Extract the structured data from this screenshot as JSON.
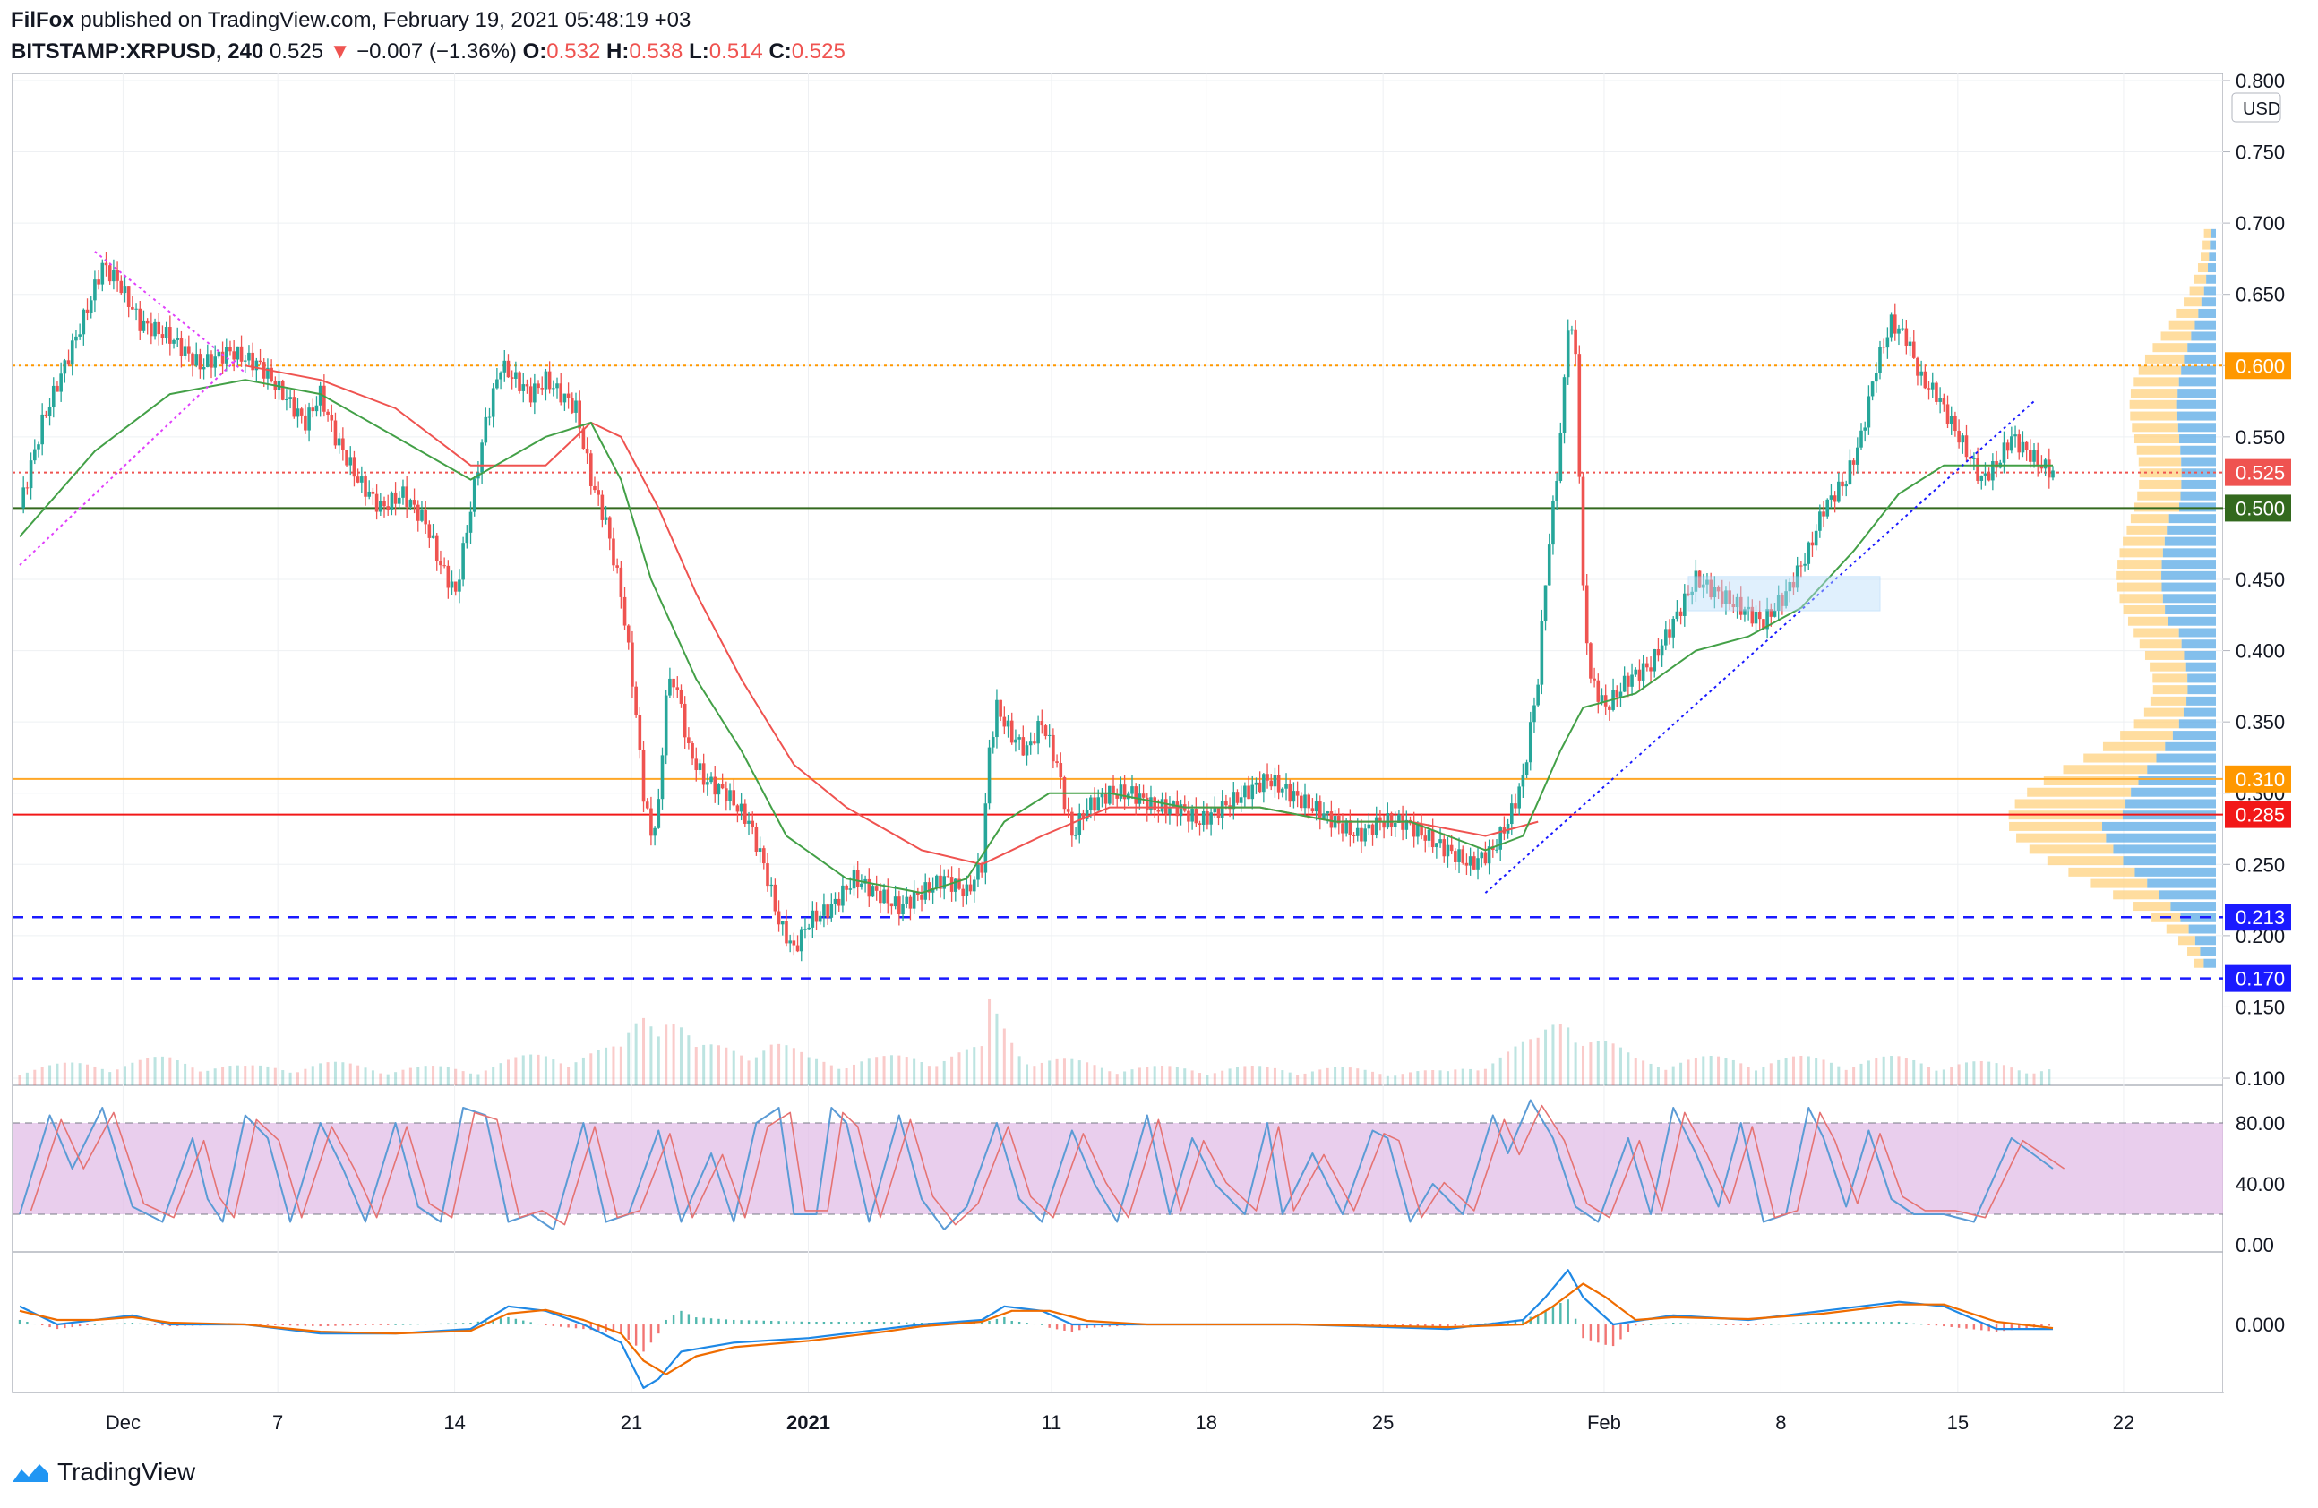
{
  "header": {
    "author": "FilFox",
    "published_text": "published on TradingView.com, February 19, 2021 05:48:19 +03",
    "symbol": "BITSTAMP:XRPUSD, 240",
    "last": "0.525",
    "change": "−0.007 (−1.36%)",
    "o_label": "O:",
    "o": "0.532",
    "h_label": "H:",
    "h": "0.538",
    "l_label": "L:",
    "l": "0.514",
    "c_label": "C:",
    "c": "0.525"
  },
  "footer": {
    "brand": "TradingView"
  },
  "colors": {
    "up": "#26a69a",
    "down": "#ef5350",
    "ma_short": "#43a047",
    "ma_long": "#ef5350",
    "stoch_k": "#5b9bd5",
    "stoch_d": "#e57373",
    "stoch_band": "#e1bee7",
    "macd": "#1e88e5",
    "signal": "#ef6c00"
  },
  "chart_data": {
    "type": "candlestick",
    "currency": "USD",
    "x_labels": [
      "Dec",
      "7",
      "14",
      "21",
      "2021",
      "11",
      "18",
      "25",
      "Feb",
      "8",
      "15",
      "22"
    ],
    "y_ticks": [
      "0.800",
      "0.750",
      "0.700",
      "0.650",
      "0.600",
      "0.550",
      "0.500",
      "0.450",
      "0.400",
      "0.350",
      "0.300",
      "0.250",
      "0.200",
      "0.150",
      "0.100"
    ],
    "ylim": [
      0.095,
      0.805
    ],
    "price_labels": [
      {
        "value": 0.6,
        "text": "0.600",
        "color": "#ff9800"
      },
      {
        "value": 0.525,
        "text": "0.525",
        "color": "#ef5350"
      },
      {
        "value": 0.5,
        "text": "0.500",
        "color": "#33691e"
      },
      {
        "value": 0.31,
        "text": "0.310",
        "color": "#ff9800"
      },
      {
        "value": 0.285,
        "text": "0.285",
        "color": "#f21818"
      },
      {
        "value": 0.213,
        "text": "0.213",
        "color": "#1a1aff"
      },
      {
        "value": 0.17,
        "text": "0.170",
        "color": "#1a1aff"
      }
    ],
    "horizontal_lines": [
      {
        "value": 0.6,
        "style": "dotted",
        "color": "#ff9800"
      },
      {
        "value": 0.525,
        "style": "dotted",
        "color": "#ef5350"
      },
      {
        "value": 0.5,
        "style": "solid",
        "color": "#33691e"
      },
      {
        "value": 0.31,
        "style": "solid",
        "color": "#ffa726"
      },
      {
        "value": 0.285,
        "style": "solid",
        "color": "#f21818"
      },
      {
        "value": 0.213,
        "style": "dashed",
        "color": "#1a1aff"
      },
      {
        "value": 0.17,
        "style": "dashed",
        "color": "#1a1aff"
      }
    ],
    "price_path": [
      [
        0,
        0.5
      ],
      [
        6,
        0.56
      ],
      [
        12,
        0.6
      ],
      [
        18,
        0.64
      ],
      [
        22,
        0.67
      ],
      [
        26,
        0.66
      ],
      [
        32,
        0.63
      ],
      [
        40,
        0.62
      ],
      [
        48,
        0.6
      ],
      [
        56,
        0.61
      ],
      [
        64,
        0.6
      ],
      [
        70,
        0.58
      ],
      [
        76,
        0.56
      ],
      [
        80,
        0.58
      ],
      [
        84,
        0.55
      ],
      [
        90,
        0.52
      ],
      [
        96,
        0.5
      ],
      [
        102,
        0.51
      ],
      [
        108,
        0.49
      ],
      [
        112,
        0.46
      ],
      [
        116,
        0.44
      ],
      [
        120,
        0.5
      ],
      [
        124,
        0.56
      ],
      [
        128,
        0.6
      ],
      [
        132,
        0.59
      ],
      [
        136,
        0.58
      ],
      [
        140,
        0.59
      ],
      [
        144,
        0.58
      ],
      [
        148,
        0.57
      ],
      [
        152,
        0.52
      ],
      [
        156,
        0.49
      ],
      [
        160,
        0.44
      ],
      [
        163,
        0.38
      ],
      [
        166,
        0.3
      ],
      [
        168,
        0.27
      ],
      [
        170,
        0.29
      ],
      [
        172,
        0.37
      ],
      [
        174,
        0.38
      ],
      [
        176,
        0.36
      ],
      [
        178,
        0.33
      ],
      [
        182,
        0.31
      ],
      [
        188,
        0.3
      ],
      [
        194,
        0.28
      ],
      [
        198,
        0.25
      ],
      [
        202,
        0.21
      ],
      [
        206,
        0.19
      ],
      [
        210,
        0.21
      ],
      [
        216,
        0.22
      ],
      [
        222,
        0.24
      ],
      [
        228,
        0.23
      ],
      [
        234,
        0.22
      ],
      [
        240,
        0.23
      ],
      [
        246,
        0.24
      ],
      [
        252,
        0.23
      ],
      [
        256,
        0.25
      ],
      [
        258,
        0.33
      ],
      [
        260,
        0.36
      ],
      [
        264,
        0.34
      ],
      [
        268,
        0.33
      ],
      [
        272,
        0.35
      ],
      [
        276,
        0.32
      ],
      [
        280,
        0.27
      ],
      [
        284,
        0.29
      ],
      [
        290,
        0.3
      ],
      [
        296,
        0.3
      ],
      [
        302,
        0.29
      ],
      [
        308,
        0.29
      ],
      [
        314,
        0.28
      ],
      [
        320,
        0.29
      ],
      [
        326,
        0.3
      ],
      [
        332,
        0.31
      ],
      [
        338,
        0.3
      ],
      [
        344,
        0.29
      ],
      [
        350,
        0.28
      ],
      [
        356,
        0.27
      ],
      [
        362,
        0.28
      ],
      [
        368,
        0.28
      ],
      [
        374,
        0.27
      ],
      [
        380,
        0.26
      ],
      [
        386,
        0.25
      ],
      [
        392,
        0.26
      ],
      [
        396,
        0.28
      ],
      [
        400,
        0.31
      ],
      [
        404,
        0.38
      ],
      [
        406,
        0.45
      ],
      [
        408,
        0.5
      ],
      [
        410,
        0.55
      ],
      [
        412,
        0.63
      ],
      [
        414,
        0.61
      ],
      [
        416,
        0.44
      ],
      [
        418,
        0.38
      ],
      [
        422,
        0.36
      ],
      [
        428,
        0.38
      ],
      [
        434,
        0.39
      ],
      [
        438,
        0.41
      ],
      [
        442,
        0.43
      ],
      [
        446,
        0.45
      ],
      [
        452,
        0.44
      ],
      [
        458,
        0.43
      ],
      [
        464,
        0.42
      ],
      [
        470,
        0.44
      ],
      [
        476,
        0.47
      ],
      [
        480,
        0.5
      ],
      [
        486,
        0.52
      ],
      [
        490,
        0.55
      ],
      [
        494,
        0.6
      ],
      [
        498,
        0.63
      ],
      [
        502,
        0.62
      ],
      [
        506,
        0.59
      ],
      [
        510,
        0.58
      ],
      [
        514,
        0.56
      ],
      [
        518,
        0.54
      ],
      [
        522,
        0.52
      ],
      [
        526,
        0.53
      ],
      [
        530,
        0.55
      ],
      [
        534,
        0.54
      ],
      [
        538,
        0.53
      ],
      [
        541,
        0.525
      ]
    ],
    "ma_short_path": [
      [
        0,
        0.48
      ],
      [
        20,
        0.54
      ],
      [
        40,
        0.58
      ],
      [
        60,
        0.59
      ],
      [
        80,
        0.58
      ],
      [
        100,
        0.55
      ],
      [
        120,
        0.52
      ],
      [
        140,
        0.55
      ],
      [
        152,
        0.56
      ],
      [
        160,
        0.52
      ],
      [
        168,
        0.45
      ],
      [
        180,
        0.38
      ],
      [
        192,
        0.33
      ],
      [
        204,
        0.27
      ],
      [
        220,
        0.24
      ],
      [
        240,
        0.23
      ],
      [
        252,
        0.24
      ],
      [
        262,
        0.28
      ],
      [
        274,
        0.3
      ],
      [
        290,
        0.3
      ],
      [
        310,
        0.29
      ],
      [
        330,
        0.29
      ],
      [
        350,
        0.28
      ],
      [
        370,
        0.28
      ],
      [
        390,
        0.26
      ],
      [
        400,
        0.27
      ],
      [
        410,
        0.33
      ],
      [
        416,
        0.36
      ],
      [
        430,
        0.37
      ],
      [
        446,
        0.4
      ],
      [
        460,
        0.41
      ],
      [
        474,
        0.43
      ],
      [
        488,
        0.47
      ],
      [
        500,
        0.51
      ],
      [
        512,
        0.53
      ],
      [
        526,
        0.53
      ],
      [
        541,
        0.53
      ]
    ],
    "ma_long_path": [
      [
        60,
        0.6
      ],
      [
        80,
        0.59
      ],
      [
        100,
        0.57
      ],
      [
        120,
        0.53
      ],
      [
        140,
        0.53
      ],
      [
        152,
        0.56
      ],
      [
        160,
        0.55
      ],
      [
        170,
        0.5
      ],
      [
        180,
        0.44
      ],
      [
        192,
        0.38
      ],
      [
        206,
        0.32
      ],
      [
        220,
        0.29
      ],
      [
        240,
        0.26
      ],
      [
        256,
        0.25
      ],
      [
        272,
        0.27
      ],
      [
        290,
        0.29
      ],
      [
        310,
        0.29
      ],
      [
        330,
        0.29
      ],
      [
        350,
        0.28
      ],
      [
        370,
        0.28
      ],
      [
        390,
        0.27
      ],
      [
        404,
        0.28
      ]
    ],
    "volume_path": [
      [
        0,
        0.2
      ],
      [
        20,
        0.25
      ],
      [
        40,
        0.3
      ],
      [
        60,
        0.2
      ],
      [
        80,
        0.25
      ],
      [
        100,
        0.2
      ],
      [
        120,
        0.2
      ],
      [
        140,
        0.35
      ],
      [
        160,
        0.4
      ],
      [
        166,
        0.9
      ],
      [
        172,
        1.0
      ],
      [
        180,
        0.4
      ],
      [
        200,
        0.5
      ],
      [
        210,
        0.3
      ],
      [
        230,
        0.3
      ],
      [
        256,
        0.4
      ],
      [
        258,
        0.9
      ],
      [
        270,
        0.3
      ],
      [
        300,
        0.2
      ],
      [
        340,
        0.2
      ],
      [
        380,
        0.15
      ],
      [
        404,
        0.5
      ],
      [
        412,
        1.0
      ],
      [
        416,
        0.6
      ],
      [
        430,
        0.3
      ],
      [
        460,
        0.3
      ],
      [
        500,
        0.3
      ],
      [
        541,
        0.2
      ]
    ],
    "stoch_k_path": [
      [
        0,
        20
      ],
      [
        8,
        85
      ],
      [
        14,
        50
      ],
      [
        22,
        90
      ],
      [
        30,
        25
      ],
      [
        38,
        15
      ],
      [
        46,
        70
      ],
      [
        50,
        30
      ],
      [
        54,
        15
      ],
      [
        60,
        85
      ],
      [
        66,
        70
      ],
      [
        72,
        15
      ],
      [
        80,
        80
      ],
      [
        86,
        50
      ],
      [
        92,
        15
      ],
      [
        100,
        80
      ],
      [
        106,
        25
      ],
      [
        112,
        15
      ],
      [
        118,
        90
      ],
      [
        124,
        85
      ],
      [
        130,
        15
      ],
      [
        136,
        20
      ],
      [
        142,
        10
      ],
      [
        150,
        80
      ],
      [
        156,
        15
      ],
      [
        162,
        20
      ],
      [
        170,
        75
      ],
      [
        176,
        15
      ],
      [
        184,
        60
      ],
      [
        190,
        15
      ],
      [
        196,
        80
      ],
      [
        202,
        90
      ],
      [
        206,
        20
      ],
      [
        212,
        20
      ],
      [
        216,
        90
      ],
      [
        220,
        80
      ],
      [
        226,
        15
      ],
      [
        234,
        85
      ],
      [
        240,
        30
      ],
      [
        246,
        10
      ],
      [
        252,
        25
      ],
      [
        260,
        80
      ],
      [
        266,
        30
      ],
      [
        272,
        15
      ],
      [
        280,
        75
      ],
      [
        286,
        40
      ],
      [
        292,
        15
      ],
      [
        300,
        85
      ],
      [
        306,
        20
      ],
      [
        312,
        70
      ],
      [
        318,
        40
      ],
      [
        326,
        20
      ],
      [
        332,
        80
      ],
      [
        336,
        20
      ],
      [
        344,
        60
      ],
      [
        352,
        20
      ],
      [
        360,
        75
      ],
      [
        364,
        70
      ],
      [
        370,
        15
      ],
      [
        376,
        40
      ],
      [
        384,
        20
      ],
      [
        392,
        85
      ],
      [
        396,
        60
      ],
      [
        402,
        95
      ],
      [
        408,
        70
      ],
      [
        414,
        25
      ],
      [
        420,
        15
      ],
      [
        428,
        70
      ],
      [
        434,
        20
      ],
      [
        440,
        90
      ],
      [
        446,
        60
      ],
      [
        452,
        25
      ],
      [
        458,
        80
      ],
      [
        464,
        15
      ],
      [
        470,
        20
      ],
      [
        476,
        90
      ],
      [
        480,
        70
      ],
      [
        486,
        25
      ],
      [
        492,
        75
      ],
      [
        498,
        30
      ],
      [
        504,
        20
      ],
      [
        512,
        20
      ],
      [
        520,
        15
      ],
      [
        530,
        70
      ],
      [
        541,
        50
      ]
    ],
    "stoch_ticks": [
      "80.00",
      "40.00",
      "0.00"
    ],
    "macd_path": [
      [
        0,
        0.02
      ],
      [
        10,
        0.0
      ],
      [
        20,
        0.005
      ],
      [
        30,
        0.01
      ],
      [
        40,
        0.0
      ],
      [
        60,
        0.0
      ],
      [
        80,
        -0.01
      ],
      [
        100,
        -0.01
      ],
      [
        120,
        -0.005
      ],
      [
        130,
        0.02
      ],
      [
        140,
        0.015
      ],
      [
        150,
        0.0
      ],
      [
        160,
        -0.02
      ],
      [
        166,
        -0.07
      ],
      [
        170,
        -0.06
      ],
      [
        176,
        -0.03
      ],
      [
        190,
        -0.02
      ],
      [
        210,
        -0.015
      ],
      [
        230,
        -0.005
      ],
      [
        240,
        0.0
      ],
      [
        256,
        0.005
      ],
      [
        262,
        0.02
      ],
      [
        272,
        0.015
      ],
      [
        280,
        0.0
      ],
      [
        300,
        0.0
      ],
      [
        340,
        0.0
      ],
      [
        380,
        -0.005
      ],
      [
        400,
        0.005
      ],
      [
        406,
        0.03
      ],
      [
        412,
        0.06
      ],
      [
        416,
        0.03
      ],
      [
        424,
        0.0
      ],
      [
        440,
        0.01
      ],
      [
        460,
        0.005
      ],
      [
        480,
        0.015
      ],
      [
        500,
        0.025
      ],
      [
        512,
        0.02
      ],
      [
        526,
        -0.005
      ],
      [
        541,
        -0.005
      ]
    ],
    "signal_path": [
      [
        0,
        0.015
      ],
      [
        10,
        0.005
      ],
      [
        20,
        0.005
      ],
      [
        30,
        0.008
      ],
      [
        40,
        0.002
      ],
      [
        60,
        0.0
      ],
      [
        80,
        -0.008
      ],
      [
        100,
        -0.01
      ],
      [
        120,
        -0.007
      ],
      [
        130,
        0.012
      ],
      [
        140,
        0.016
      ],
      [
        150,
        0.005
      ],
      [
        160,
        -0.01
      ],
      [
        166,
        -0.04
      ],
      [
        172,
        -0.055
      ],
      [
        180,
        -0.035
      ],
      [
        190,
        -0.025
      ],
      [
        210,
        -0.018
      ],
      [
        230,
        -0.008
      ],
      [
        240,
        -0.002
      ],
      [
        256,
        0.003
      ],
      [
        264,
        0.015
      ],
      [
        274,
        0.015
      ],
      [
        284,
        0.004
      ],
      [
        300,
        0.0
      ],
      [
        340,
        0.0
      ],
      [
        380,
        -0.003
      ],
      [
        400,
        0.0
      ],
      [
        408,
        0.02
      ],
      [
        416,
        0.045
      ],
      [
        422,
        0.03
      ],
      [
        430,
        0.005
      ],
      [
        440,
        0.008
      ],
      [
        460,
        0.006
      ],
      [
        480,
        0.012
      ],
      [
        500,
        0.022
      ],
      [
        512,
        0.022
      ],
      [
        526,
        0.003
      ],
      [
        541,
        -0.004
      ]
    ],
    "macd_ticks": [
      "0.000"
    ]
  }
}
